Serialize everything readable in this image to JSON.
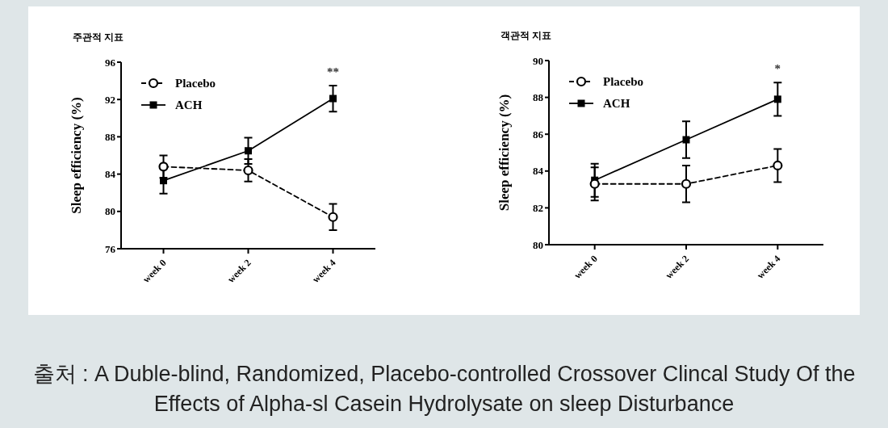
{
  "chart_data": [
    {
      "type": "line",
      "title": "주관적 지표",
      "ylabel": "Sleep efficiency (%)",
      "categories": [
        "week 0",
        "week 2",
        "week 4"
      ],
      "ylim": [
        76,
        96
      ],
      "yticks": [
        76,
        80,
        84,
        88,
        92,
        96
      ],
      "legend": "top left",
      "series": [
        {
          "name": "Placebo",
          "color": "#000000",
          "marker": "circle",
          "line_style": "dashed",
          "values": [
            84.8,
            84.4,
            79.4
          ],
          "errors": [
            1.2,
            1.2,
            1.4
          ]
        },
        {
          "name": "ACH",
          "color": "#000000",
          "marker": "square",
          "line_style": "solid",
          "values": [
            83.3,
            86.5,
            92.1
          ],
          "errors": [
            1.4,
            1.4,
            1.4
          ]
        }
      ],
      "annotations": [
        "출처 : A Duble-blind, Randomized, Placebo-controlled Crossover Clincal Study Of the Effects of Alpha-sl Casein Hydrolysate on sleep Disturbance",
        "**"
      ]
    },
    {
      "type": "line",
      "title": "객관적 지표",
      "ylabel": "Sleep efficiency (%)",
      "categories": [
        "week 0",
        "week 2",
        "week 4"
      ],
      "ylim": [
        80,
        90
      ],
      "yticks": [
        80,
        82,
        84,
        86,
        88,
        90
      ],
      "legend": "top left",
      "series": [
        {
          "name": "Placebo",
          "color": "#000000",
          "marker": "circle",
          "line_style": "dashed",
          "values": [
            83.3,
            83.3,
            84.3
          ],
          "errors": [
            0.9,
            1.0,
            0.9
          ]
        },
        {
          "name": "ACH",
          "color": "#000000",
          "marker": "square",
          "line_style": "solid",
          "values": [
            83.5,
            85.7,
            87.9
          ],
          "errors": [
            0.9,
            1.0,
            0.9
          ]
        }
      ],
      "annotations": [
        "*"
      ]
    }
  ]
}
